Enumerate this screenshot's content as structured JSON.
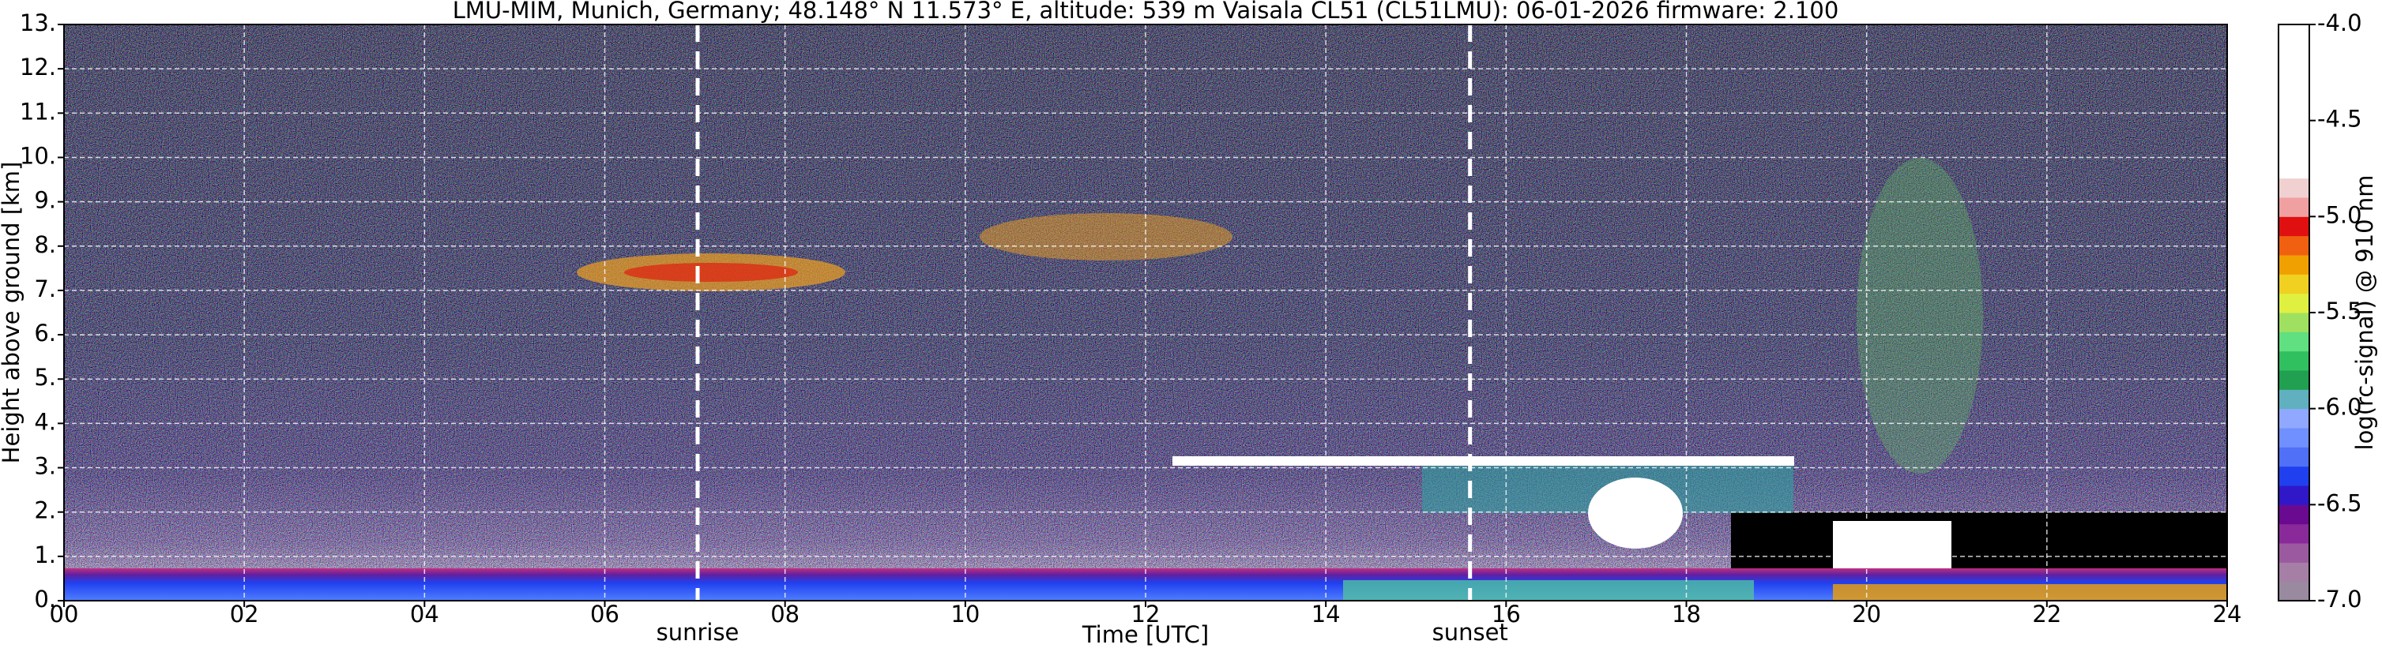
{
  "chart_data": {
    "type": "heatmap",
    "title": "LMU-MIM, Munich, Germany; 48.148° N 11.573° E, altitude: 539 m    Vaisala CL51 (CL51LMU): 06-01-2026    firmware: 2.100",
    "xlabel": "Time [UTC]",
    "ylabel": "Height above ground [km]",
    "xlim": [
      0,
      24
    ],
    "xticks": [
      {
        "value": 0,
        "label": "00"
      },
      {
        "value": 2,
        "label": "02"
      },
      {
        "value": 4,
        "label": "04"
      },
      {
        "value": 6,
        "label": "06"
      },
      {
        "value": 8,
        "label": "08"
      },
      {
        "value": 10,
        "label": "10"
      },
      {
        "value": 12,
        "label": "12"
      },
      {
        "value": 14,
        "label": "14"
      },
      {
        "value": 16,
        "label": "16"
      },
      {
        "value": 18,
        "label": "18"
      },
      {
        "value": 20,
        "label": "20"
      },
      {
        "value": 22,
        "label": "22"
      },
      {
        "value": 24,
        "label": "24"
      }
    ],
    "ylim": [
      0,
      13
    ],
    "yticks": [
      {
        "value": 0,
        "label": "0."
      },
      {
        "value": 1,
        "label": "1."
      },
      {
        "value": 2,
        "label": "2."
      },
      {
        "value": 3,
        "label": "3."
      },
      {
        "value": 4,
        "label": "4."
      },
      {
        "value": 5,
        "label": "5."
      },
      {
        "value": 6,
        "label": "6."
      },
      {
        "value": 7,
        "label": "7."
      },
      {
        "value": 8,
        "label": "8."
      },
      {
        "value": 9,
        "label": "9."
      },
      {
        "value": 10,
        "label": "10."
      },
      {
        "value": 11,
        "label": "11."
      },
      {
        "value": 12,
        "label": "12."
      },
      {
        "value": 13,
        "label": "13."
      }
    ],
    "grid": true,
    "annotations": [
      {
        "text": "sunrise",
        "x": 7.03
      },
      {
        "text": "sunset",
        "x": 15.6
      }
    ],
    "colorbar": {
      "label": "log(rc-signal) @ 910 nm",
      "lim": [
        -7,
        -4
      ],
      "ticks": [
        {
          "value": -4,
          "label": "-4.0"
        },
        {
          "value": -4.5,
          "label": "-4.5"
        },
        {
          "value": -5,
          "label": "-5.0"
        },
        {
          "value": -5.5,
          "label": "-5.5"
        },
        {
          "value": -6,
          "label": "-6.0"
        },
        {
          "value": -6.5,
          "label": "-6.5"
        },
        {
          "value": -7,
          "label": "-7.0"
        }
      ],
      "colors": [
        "#9a8aa0",
        "#a57fa5",
        "#9b5aa0",
        "#8a2a9a",
        "#6a0a90",
        "#3018c8",
        "#2040f0",
        "#5070f8",
        "#7090ff",
        "#90a8ff",
        "#60b0c0",
        "#20a050",
        "#30c060",
        "#60e080",
        "#a0e060",
        "#e0f040",
        "#f0d020",
        "#f0a000",
        "#f06010",
        "#e01010",
        "#f0a0a0",
        "#f0d0d0",
        "#ffffff",
        "#ffffff",
        "#ffffff",
        "#ffffff",
        "#ffffff",
        "#ffffff",
        "#ffffff",
        "#ffffff"
      ]
    }
  }
}
